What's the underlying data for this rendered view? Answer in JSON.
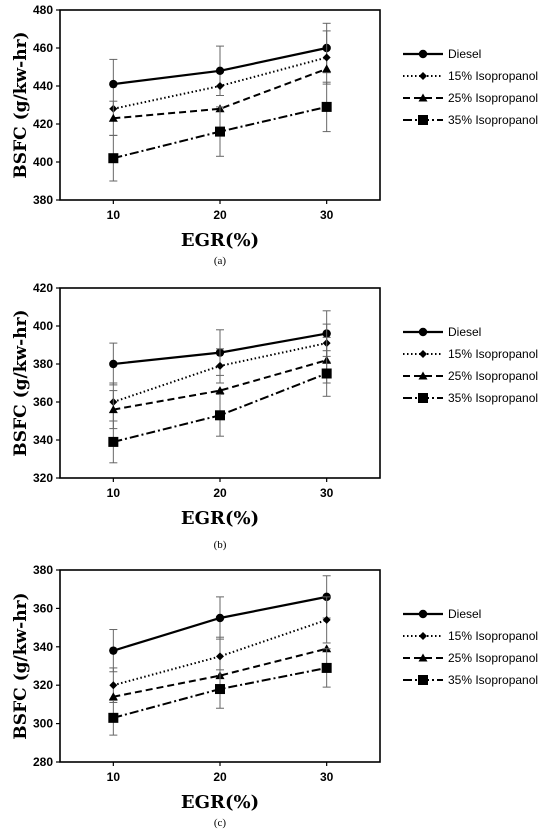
{
  "chart_data": [
    {
      "type": "line",
      "panel": "(a)",
      "xlabel": "EGR(%)",
      "ylabel": "BSFC (g/kw-hr)",
      "x": [
        10,
        20,
        30
      ],
      "ylim": [
        380,
        480
      ],
      "yticks": [
        380,
        400,
        420,
        440,
        460,
        480
      ],
      "xticks": [
        10,
        20,
        30
      ],
      "grid": false,
      "legend": "right",
      "series": [
        {
          "name": "Diesel",
          "values": [
            441,
            448,
            460
          ],
          "error": [
            13,
            13,
            13
          ],
          "style": "solid",
          "marker": "circle"
        },
        {
          "name": "15% Isopropanol",
          "values": [
            428,
            440,
            455
          ],
          "error": [
            0,
            0,
            14
          ],
          "style": "dotted",
          "marker": "diamond"
        },
        {
          "name": "25% Isopropanol",
          "values": [
            423,
            428,
            449
          ],
          "error": [
            9,
            0,
            0
          ],
          "style": "dashed",
          "marker": "triangle"
        },
        {
          "name": "35% Isopropanol",
          "values": [
            402,
            416,
            429
          ],
          "error": [
            12,
            13,
            13
          ],
          "style": "dashdot",
          "marker": "square"
        }
      ]
    },
    {
      "type": "line",
      "panel": "(b)",
      "xlabel": "EGR(%)",
      "ylabel": "BSFC (g/kw-hr)",
      "x": [
        10,
        20,
        30
      ],
      "ylim": [
        320,
        420
      ],
      "yticks": [
        320,
        340,
        360,
        380,
        400,
        420
      ],
      "xticks": [
        10,
        20,
        30
      ],
      "grid": false,
      "legend": "right",
      "series": [
        {
          "name": "Diesel",
          "values": [
            380,
            386,
            396
          ],
          "error": [
            11,
            12,
            12
          ],
          "style": "solid",
          "marker": "circle"
        },
        {
          "name": "15% Isopropanol",
          "values": [
            360,
            379,
            391
          ],
          "error": [
            10,
            9,
            10
          ],
          "style": "dotted",
          "marker": "diamond"
        },
        {
          "name": "25% Isopropanol",
          "values": [
            356,
            366,
            382
          ],
          "error": [
            10,
            0,
            12
          ],
          "style": "dashed",
          "marker": "triangle"
        },
        {
          "name": "35% Isopropanol",
          "values": [
            339,
            353,
            375
          ],
          "error": [
            11,
            11,
            12
          ],
          "style": "dashdot",
          "marker": "square"
        }
      ]
    },
    {
      "type": "line",
      "panel": "(c)",
      "xlabel": "EGR(%)",
      "ylabel": "BSFC (g/kw-hr)",
      "x": [
        10,
        20,
        30
      ],
      "ylim": [
        280,
        380
      ],
      "yticks": [
        280,
        300,
        320,
        340,
        360,
        380
      ],
      "xticks": [
        10,
        20,
        30
      ],
      "grid": false,
      "legend": "right",
      "series": [
        {
          "name": "Diesel",
          "values": [
            338,
            355,
            366
          ],
          "error": [
            11,
            11,
            11
          ],
          "style": "solid",
          "marker": "circle"
        },
        {
          "name": "15% Isopropanol",
          "values": [
            320,
            335,
            354
          ],
          "error": [
            9,
            10,
            12
          ],
          "style": "dotted",
          "marker": "diamond"
        },
        {
          "name": "25% Isopropanol",
          "values": [
            314,
            325,
            339
          ],
          "error": [
            0,
            0,
            0
          ],
          "style": "dashed",
          "marker": "triangle"
        },
        {
          "name": "35% Isopropanol",
          "values": [
            303,
            318,
            329
          ],
          "error": [
            9,
            10,
            10
          ],
          "style": "dashdot",
          "marker": "square"
        }
      ]
    }
  ]
}
